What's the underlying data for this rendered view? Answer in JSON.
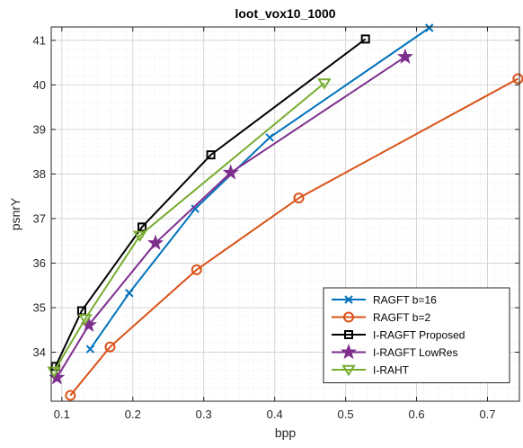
{
  "chart_data": {
    "type": "line",
    "title": "loot_vox10_1000",
    "xlabel": "bpp",
    "ylabel": "psnrY",
    "xlim": [
      0.085,
      0.745
    ],
    "ylim": [
      32.9,
      41.3
    ],
    "xticks": [
      0.1,
      0.2,
      0.3,
      0.4,
      0.5,
      0.6,
      0.7
    ],
    "xtick_labels": [
      "0.1",
      "0.2",
      "0.3",
      "0.4",
      "0.5",
      "0.6",
      "0.7"
    ],
    "yticks": [
      34,
      35,
      36,
      37,
      38,
      39,
      40,
      41
    ],
    "ytick_labels": [
      "34",
      "35",
      "36",
      "37",
      "38",
      "39",
      "40",
      "41"
    ],
    "grid": true,
    "minor_grid": true,
    "legend_position": "bottom-right",
    "series": [
      {
        "name": "RAGFT b=16",
        "color": "#0072BD",
        "marker": "x",
        "x": [
          0.14,
          0.195,
          0.288,
          0.393,
          0.618
        ],
        "y": [
          34.07,
          35.33,
          37.22,
          38.82,
          41.28
        ]
      },
      {
        "name": "RAGFT b=2",
        "color": "#D95319",
        "marker": "circle",
        "x": [
          0.112,
          0.168,
          0.29,
          0.434,
          0.743
        ],
        "y": [
          33.03,
          34.12,
          35.85,
          37.46,
          40.14
        ]
      },
      {
        "name": "I-RAGFT Proposed",
        "color": "#000000",
        "marker": "square",
        "x": [
          0.091,
          0.128,
          0.213,
          0.31,
          0.528
        ],
        "y": [
          33.68,
          34.93,
          36.81,
          38.43,
          41.03
        ]
      },
      {
        "name": "I-RAGFT LowRes",
        "color": "#7E2F8E",
        "marker": "star",
        "x": [
          0.093,
          0.138,
          0.232,
          0.338,
          0.584
        ],
        "y": [
          33.43,
          34.61,
          36.45,
          38.03,
          40.63
        ]
      },
      {
        "name": "I-RAHT",
        "color": "#77AC30",
        "marker": "triangle-down",
        "x": [
          0.089,
          0.133,
          0.21,
          0.47
        ],
        "y": [
          33.57,
          34.75,
          36.62,
          40.04
        ]
      }
    ]
  }
}
